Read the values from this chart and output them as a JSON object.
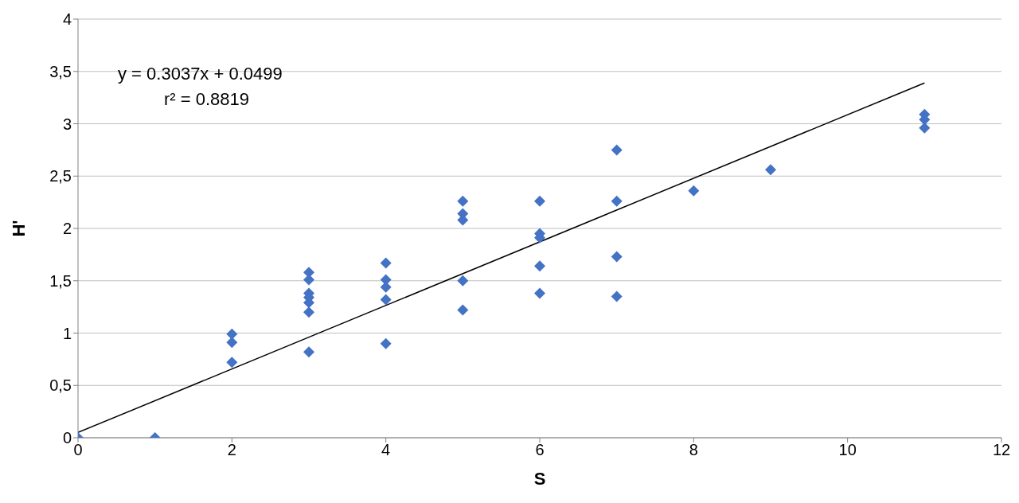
{
  "chart_data": {
    "type": "scatter",
    "xlabel": "S",
    "ylabel": "H'",
    "annotations": [
      "y = 0.3037x + 0.0499",
      "r² = 0.8819"
    ],
    "xlim": [
      0,
      12
    ],
    "xticks": [
      0,
      2,
      4,
      6,
      8,
      10,
      12
    ],
    "ylim": [
      0,
      4
    ],
    "yticks": [
      0,
      {
        "value": 0.5,
        "label": "0,5"
      },
      1,
      {
        "value": 1.5,
        "label": "1,5"
      },
      2,
      {
        "value": 2.5,
        "label": "2,5"
      },
      3,
      {
        "value": 3.5,
        "label": "3,5"
      },
      4
    ],
    "grid": "y",
    "legend": false,
    "marker": "diamond",
    "series": [
      {
        "color": "#4472c4",
        "x": [
          0,
          1,
          2,
          2,
          2,
          3,
          3,
          3,
          3,
          3,
          3,
          3,
          4,
          4,
          4,
          4,
          4,
          5,
          5,
          5,
          5,
          5,
          6,
          6,
          6,
          6,
          6,
          7,
          7,
          7,
          7,
          8,
          9,
          11,
          11,
          11
        ],
        "values": [
          0,
          0,
          0.99,
          0.91,
          0.72,
          1.58,
          1.51,
          1.38,
          1.34,
          1.29,
          1.2,
          0.82,
          1.67,
          1.51,
          1.44,
          1.32,
          0.9,
          2.26,
          2.14,
          2.08,
          1.5,
          1.22,
          2.26,
          1.95,
          1.91,
          1.64,
          1.38,
          2.75,
          2.26,
          1.73,
          1.35,
          2.36,
          2.56,
          3.09,
          3.04,
          2.96
        ]
      },
      {
        "type": "line",
        "color": "#000000",
        "marker": "none",
        "x": [
          0,
          11
        ],
        "values": [
          0.05,
          3.39
        ]
      }
    ]
  }
}
